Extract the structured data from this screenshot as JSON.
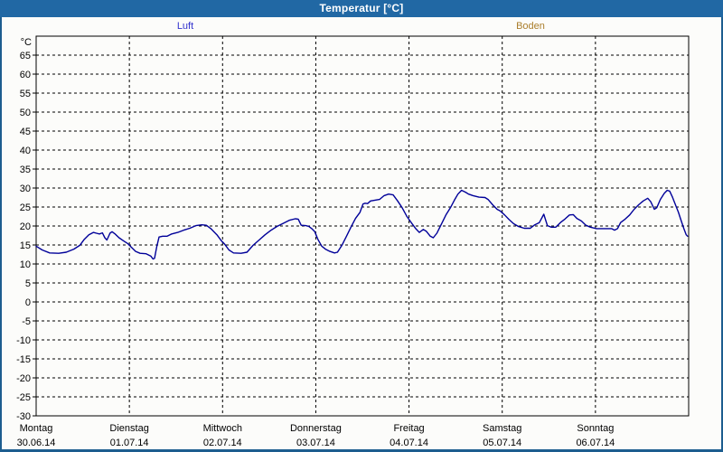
{
  "window": {
    "title": "Temperatur [°C]",
    "titlebar_color": "#2168a4",
    "frame_color": "#1d5d8f",
    "background_color": "#fcfcfa"
  },
  "legend": {
    "items": [
      {
        "label": "Luft",
        "color": "#3232cd"
      },
      {
        "label": "Boden",
        "color": "#aa7d2a"
      }
    ]
  },
  "chart_data": {
    "type": "line",
    "title": "Temperatur [°C]",
    "y_unit_label": "°C",
    "ylim": [
      -30,
      70
    ],
    "ytick_step": 5,
    "ytick_label_min": -30,
    "ytick_label_max": 65,
    "grid": "dashed",
    "grid_color": "#000000",
    "axis_color": "#000000",
    "x_days": [
      {
        "weekday": "Montag",
        "date": "30.06.14"
      },
      {
        "weekday": "Dienstag",
        "date": "01.07.14"
      },
      {
        "weekday": "Mittwoch",
        "date": "02.07.14"
      },
      {
        "weekday": "Donnerstag",
        "date": "03.07.14"
      },
      {
        "weekday": "Freitag",
        "date": "04.07.14"
      },
      {
        "weekday": "Samstag",
        "date": "05.07.14"
      },
      {
        "weekday": "Sonntag",
        "date": "06.07.14"
      }
    ],
    "series": [
      {
        "name": "Luft",
        "color": "#000099",
        "points": [
          [
            0.0,
            14.7
          ],
          [
            0.065,
            13.7
          ],
          [
            0.145,
            12.9
          ],
          [
            0.242,
            12.8
          ],
          [
            0.323,
            13.1
          ],
          [
            0.404,
            13.9
          ],
          [
            0.468,
            14.9
          ],
          [
            0.517,
            16.5
          ],
          [
            0.565,
            17.7
          ],
          [
            0.614,
            18.3
          ],
          [
            0.647,
            18.1
          ],
          [
            0.679,
            17.9
          ],
          [
            0.711,
            18.2
          ],
          [
            0.737,
            16.9
          ],
          [
            0.759,
            16.3
          ],
          [
            0.792,
            18.1
          ],
          [
            0.814,
            18.5
          ],
          [
            0.846,
            17.9
          ],
          [
            0.889,
            16.9
          ],
          [
            0.938,
            16.1
          ],
          [
            0.986,
            15.3
          ],
          [
            1.018,
            14.5
          ],
          [
            1.067,
            13.3
          ],
          [
            1.115,
            12.8
          ],
          [
            1.18,
            12.7
          ],
          [
            1.229,
            12.1
          ],
          [
            1.254,
            11.3
          ],
          [
            1.27,
            11.5
          ],
          [
            1.293,
            14.5
          ],
          [
            1.319,
            17.1
          ],
          [
            1.357,
            17.3
          ],
          [
            1.406,
            17.3
          ],
          [
            1.454,
            17.9
          ],
          [
            1.519,
            18.3
          ],
          [
            1.583,
            18.9
          ],
          [
            1.648,
            19.4
          ],
          [
            1.713,
            20.1
          ],
          [
            1.777,
            20.3
          ],
          [
            1.826,
            20.2
          ],
          [
            1.874,
            19.3
          ],
          [
            1.939,
            17.7
          ],
          [
            1.988,
            16.1
          ],
          [
            2.02,
            15.3
          ],
          [
            2.068,
            13.7
          ],
          [
            2.117,
            12.9
          ],
          [
            2.198,
            12.8
          ],
          [
            2.262,
            13.1
          ],
          [
            2.327,
            14.9
          ],
          [
            2.392,
            16.3
          ],
          [
            2.456,
            17.7
          ],
          [
            2.521,
            18.9
          ],
          [
            2.586,
            19.9
          ],
          [
            2.65,
            20.7
          ],
          [
            2.715,
            21.5
          ],
          [
            2.78,
            21.9
          ],
          [
            2.812,
            21.8
          ],
          [
            2.844,
            20.2
          ],
          [
            2.892,
            20.1
          ],
          [
            2.925,
            19.9
          ],
          [
            2.957,
            19.3
          ],
          [
            2.989,
            18.5
          ],
          [
            3.022,
            16.5
          ],
          [
            3.064,
            14.7
          ],
          [
            3.103,
            13.9
          ],
          [
            3.151,
            13.3
          ],
          [
            3.2,
            12.9
          ],
          [
            3.232,
            13.1
          ],
          [
            3.28,
            14.9
          ],
          [
            3.329,
            17.3
          ],
          [
            3.377,
            19.7
          ],
          [
            3.426,
            22.0
          ],
          [
            3.474,
            23.6
          ],
          [
            3.507,
            25.8
          ],
          [
            3.529,
            26.0
          ],
          [
            3.555,
            25.9
          ],
          [
            3.587,
            26.6
          ],
          [
            3.636,
            26.8
          ],
          [
            3.684,
            27.0
          ],
          [
            3.733,
            28.0
          ],
          [
            3.781,
            28.4
          ],
          [
            3.83,
            28.2
          ],
          [
            3.878,
            26.6
          ],
          [
            3.927,
            24.8
          ],
          [
            3.975,
            22.6
          ],
          [
            4.024,
            20.9
          ],
          [
            4.072,
            19.3
          ],
          [
            4.111,
            18.3
          ],
          [
            4.153,
            19.1
          ],
          [
            4.186,
            18.6
          ],
          [
            4.228,
            17.3
          ],
          [
            4.26,
            16.9
          ],
          [
            4.299,
            18.1
          ],
          [
            4.347,
            20.5
          ],
          [
            4.396,
            22.9
          ],
          [
            4.444,
            24.8
          ],
          [
            4.487,
            26.8
          ],
          [
            4.525,
            28.4
          ],
          [
            4.564,
            29.4
          ],
          [
            4.606,
            28.9
          ],
          [
            4.638,
            28.4
          ],
          [
            4.687,
            28.0
          ],
          [
            4.751,
            27.6
          ],
          [
            4.816,
            27.5
          ],
          [
            4.848,
            27.0
          ],
          [
            4.897,
            25.6
          ],
          [
            4.945,
            24.4
          ],
          [
            4.977,
            24.0
          ],
          [
            5.026,
            22.9
          ],
          [
            5.074,
            21.7
          ],
          [
            5.123,
            20.6
          ],
          [
            5.171,
            19.9
          ],
          [
            5.236,
            19.4
          ],
          [
            5.301,
            19.4
          ],
          [
            5.349,
            20.3
          ],
          [
            5.398,
            20.9
          ],
          [
            5.446,
            23.1
          ],
          [
            5.485,
            20.1
          ],
          [
            5.527,
            19.7
          ],
          [
            5.575,
            19.7
          ],
          [
            5.624,
            20.9
          ],
          [
            5.672,
            21.8
          ],
          [
            5.721,
            22.9
          ],
          [
            5.762,
            23.0
          ],
          [
            5.801,
            22.0
          ],
          [
            5.85,
            21.3
          ],
          [
            5.898,
            20.2
          ],
          [
            5.946,
            19.7
          ],
          [
            6.011,
            19.3
          ],
          [
            6.108,
            19.3
          ],
          [
            6.173,
            19.3
          ],
          [
            6.205,
            18.9
          ],
          [
            6.237,
            19.3
          ],
          [
            6.27,
            20.9
          ],
          [
            6.318,
            21.8
          ],
          [
            6.367,
            22.9
          ],
          [
            6.415,
            24.4
          ],
          [
            6.464,
            25.6
          ],
          [
            6.512,
            26.6
          ],
          [
            6.561,
            27.3
          ],
          [
            6.593,
            26.4
          ],
          [
            6.632,
            24.4
          ],
          [
            6.658,
            24.8
          ],
          [
            6.697,
            27.0
          ],
          [
            6.738,
            28.6
          ],
          [
            6.77,
            29.4
          ],
          [
            6.796,
            29.2
          ],
          [
            6.826,
            27.6
          ],
          [
            6.852,
            26.0
          ],
          [
            6.89,
            23.6
          ],
          [
            6.916,
            21.7
          ],
          [
            6.949,
            19.3
          ],
          [
            6.974,
            17.7
          ],
          [
            6.988,
            17.3
          ]
        ]
      },
      {
        "name": "Boden",
        "color": "#aa7d2a",
        "points": []
      }
    ]
  }
}
